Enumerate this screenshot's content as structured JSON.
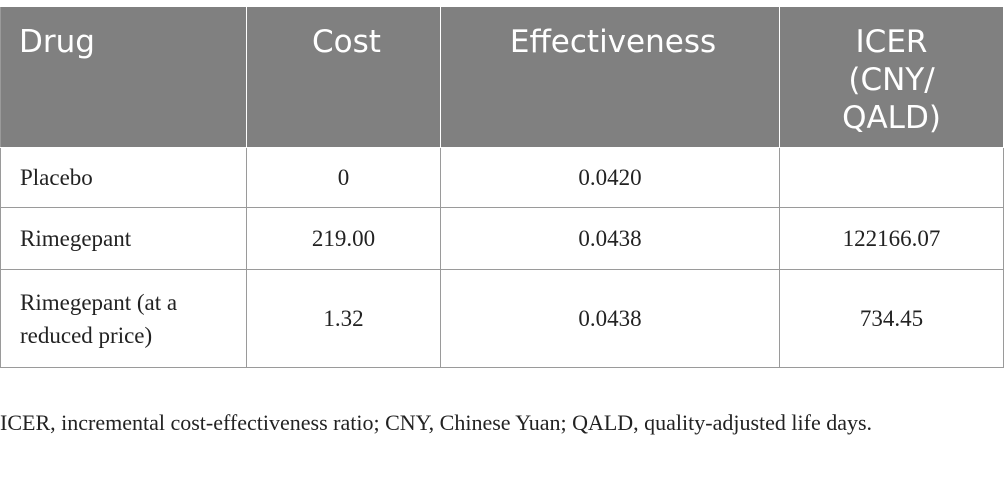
{
  "table": {
    "headers": [
      "Drug",
      "Cost",
      "Effectiveness",
      "ICER (CNY/ QALD)"
    ],
    "rows": [
      [
        "Placebo",
        "0",
        "0.0420",
        ""
      ],
      [
        "Rimegepant",
        "219.00",
        "0.0438",
        "122166.07"
      ],
      [
        "Rimegepant (at a reduced price)",
        "1.32",
        "0.0438",
        "734.45"
      ]
    ]
  },
  "footnote": "ICER, incremental cost-effectiveness ratio; CNY, Chinese Yuan; QALD, quality-adjusted life days.",
  "colors": {
    "header_bg": "#808080",
    "header_text": "#ffffff",
    "border": "#9a9a9a",
    "body_text": "#222222"
  }
}
